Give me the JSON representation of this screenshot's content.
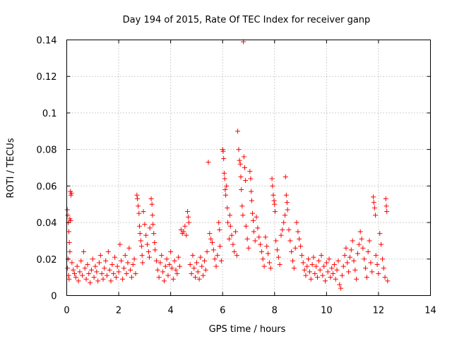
{
  "chart_data": {
    "type": "scatter",
    "title": "Day 194 of 2015, Rate Of TEC Index for receiver ganp",
    "xlabel": "GPS time / hours",
    "ylabel": "ROTI / TECUs",
    "xlim": [
      0,
      14
    ],
    "ylim": [
      0,
      0.14
    ],
    "xticks": [
      "0",
      "2",
      "4",
      "6",
      "8",
      "10",
      "12",
      "14"
    ],
    "yticks": [
      "0",
      "0.02",
      "0.04",
      "0.06",
      "0.08",
      "0.1",
      "0.12",
      "0.14"
    ],
    "grid": true,
    "marker": "+",
    "color": "#ff0000",
    "series": [
      {
        "name": "ROTI",
        "points": [
          [
            0.02,
            0.047
          ],
          [
            0.04,
            0.044
          ],
          [
            0.06,
            0.04
          ],
          [
            0.08,
            0.035
          ],
          [
            0.1,
            0.029
          ],
          [
            0.12,
            0.024
          ],
          [
            0.05,
            0.02
          ],
          [
            0.03,
            0.015
          ],
          [
            0.07,
            0.011
          ],
          [
            0.09,
            0.009
          ],
          [
            0.14,
            0.057
          ],
          [
            0.16,
            0.055
          ],
          [
            0.18,
            0.056
          ],
          [
            0.12,
            0.042
          ],
          [
            0.15,
            0.041
          ],
          [
            0.2,
            0.018
          ],
          [
            0.25,
            0.014
          ],
          [
            0.3,
            0.012
          ],
          [
            0.35,
            0.01
          ],
          [
            0.4,
            0.016
          ],
          [
            0.45,
            0.008
          ],
          [
            0.5,
            0.013
          ],
          [
            0.55,
            0.019
          ],
          [
            0.6,
            0.011
          ],
          [
            0.65,
            0.024
          ],
          [
            0.7,
            0.015
          ],
          [
            0.75,
            0.009
          ],
          [
            0.8,
            0.017
          ],
          [
            0.85,
            0.012
          ],
          [
            0.9,
            0.007
          ],
          [
            0.95,
            0.014
          ],
          [
            1.0,
            0.02
          ],
          [
            1.05,
            0.01
          ],
          [
            1.1,
            0.016
          ],
          [
            1.15,
            0.013
          ],
          [
            1.2,
            0.008
          ],
          [
            1.25,
            0.018
          ],
          [
            1.3,
            0.022
          ],
          [
            1.35,
            0.012
          ],
          [
            1.4,
            0.009
          ],
          [
            1.45,
            0.015
          ],
          [
            1.5,
            0.019
          ],
          [
            1.55,
            0.011
          ],
          [
            1.6,
            0.024
          ],
          [
            1.65,
            0.014
          ],
          [
            1.7,
            0.008
          ],
          [
            1.75,
            0.017
          ],
          [
            1.8,
            0.012
          ],
          [
            1.85,
            0.021
          ],
          [
            1.9,
            0.01
          ],
          [
            1.95,
            0.016
          ],
          [
            2.0,
            0.013
          ],
          [
            2.05,
            0.028
          ],
          [
            2.1,
            0.019
          ],
          [
            2.15,
            0.009
          ],
          [
            2.2,
            0.015
          ],
          [
            2.25,
            0.022
          ],
          [
            2.3,
            0.012
          ],
          [
            2.35,
            0.018
          ],
          [
            2.4,
            0.026
          ],
          [
            2.45,
            0.014
          ],
          [
            2.5,
            0.01
          ],
          [
            2.55,
            0.017
          ],
          [
            2.6,
            0.02
          ],
          [
            2.65,
            0.012
          ],
          [
            2.7,
            0.055
          ],
          [
            2.72,
            0.053
          ],
          [
            2.75,
            0.049
          ],
          [
            2.78,
            0.045
          ],
          [
            2.8,
            0.038
          ],
          [
            2.82,
            0.034
          ],
          [
            2.85,
            0.03
          ],
          [
            2.88,
            0.027
          ],
          [
            2.9,
            0.022
          ],
          [
            2.92,
            0.018
          ],
          [
            2.95,
            0.046
          ],
          [
            3.0,
            0.039
          ],
          [
            3.05,
            0.033
          ],
          [
            3.1,
            0.028
          ],
          [
            3.15,
            0.024
          ],
          [
            3.18,
            0.021
          ],
          [
            3.2,
            0.037
          ],
          [
            3.25,
            0.053
          ],
          [
            3.28,
            0.05
          ],
          [
            3.3,
            0.044
          ],
          [
            3.32,
            0.039
          ],
          [
            3.35,
            0.034
          ],
          [
            3.38,
            0.029
          ],
          [
            3.4,
            0.025
          ],
          [
            3.45,
            0.019
          ],
          [
            3.5,
            0.014
          ],
          [
            3.55,
            0.01
          ],
          [
            3.6,
            0.018
          ],
          [
            3.65,
            0.022
          ],
          [
            3.7,
            0.013
          ],
          [
            3.75,
            0.008
          ],
          [
            3.8,
            0.016
          ],
          [
            3.85,
            0.02
          ],
          [
            3.9,
            0.011
          ],
          [
            3.95,
            0.017
          ],
          [
            4.0,
            0.024
          ],
          [
            4.05,
            0.015
          ],
          [
            4.1,
            0.009
          ],
          [
            4.15,
            0.019
          ],
          [
            4.2,
            0.014
          ],
          [
            4.25,
            0.012
          ],
          [
            4.3,
            0.021
          ],
          [
            4.35,
            0.016
          ],
          [
            4.4,
            0.036
          ],
          [
            4.45,
            0.034
          ],
          [
            4.5,
            0.035
          ],
          [
            4.55,
            0.038
          ],
          [
            4.6,
            0.033
          ],
          [
            4.65,
            0.046
          ],
          [
            4.68,
            0.043
          ],
          [
            4.7,
            0.04
          ],
          [
            4.75,
            0.017
          ],
          [
            4.8,
            0.012
          ],
          [
            4.85,
            0.022
          ],
          [
            4.9,
            0.015
          ],
          [
            4.95,
            0.01
          ],
          [
            5.0,
            0.018
          ],
          [
            5.05,
            0.013
          ],
          [
            5.1,
            0.009
          ],
          [
            5.15,
            0.021
          ],
          [
            5.2,
            0.016
          ],
          [
            5.25,
            0.011
          ],
          [
            5.3,
            0.019
          ],
          [
            5.35,
            0.014
          ],
          [
            5.4,
            0.024
          ],
          [
            5.45,
            0.073
          ],
          [
            5.5,
            0.034
          ],
          [
            5.55,
            0.031
          ],
          [
            5.6,
            0.029
          ],
          [
            5.65,
            0.025
          ],
          [
            5.7,
            0.02
          ],
          [
            5.75,
            0.016
          ],
          [
            5.8,
            0.022
          ],
          [
            5.85,
            0.04
          ],
          [
            5.88,
            0.036
          ],
          [
            5.9,
            0.027
          ],
          [
            5.95,
            0.019
          ],
          [
            6.0,
            0.08
          ],
          [
            6.02,
            0.079
          ],
          [
            6.04,
            0.075
          ],
          [
            6.06,
            0.067
          ],
          [
            6.08,
            0.064
          ],
          [
            6.1,
            0.058
          ],
          [
            6.12,
            0.055
          ],
          [
            6.15,
            0.06
          ],
          [
            6.18,
            0.048
          ],
          [
            6.2,
            0.04
          ],
          [
            6.25,
            0.031
          ],
          [
            6.28,
            0.044
          ],
          [
            6.3,
            0.038
          ],
          [
            6.35,
            0.033
          ],
          [
            6.4,
            0.028
          ],
          [
            6.45,
            0.024
          ],
          [
            6.5,
            0.035
          ],
          [
            6.55,
            0.022
          ],
          [
            6.58,
            0.09
          ],
          [
            6.62,
            0.08
          ],
          [
            6.65,
            0.074
          ],
          [
            6.68,
            0.072
          ],
          [
            6.7,
            0.065
          ],
          [
            6.72,
            0.058
          ],
          [
            6.75,
            0.049
          ],
          [
            6.78,
            0.044
          ],
          [
            6.8,
            0.139
          ],
          [
            6.82,
            0.076
          ],
          [
            6.85,
            0.07
          ],
          [
            6.88,
            0.063
          ],
          [
            6.9,
            0.038
          ],
          [
            6.95,
            0.031
          ],
          [
            7.0,
            0.026
          ],
          [
            7.05,
            0.068
          ],
          [
            7.08,
            0.064
          ],
          [
            7.1,
            0.057
          ],
          [
            7.12,
            0.052
          ],
          [
            7.15,
            0.045
          ],
          [
            7.18,
            0.041
          ],
          [
            7.2,
            0.035
          ],
          [
            7.25,
            0.03
          ],
          [
            7.3,
            0.043
          ],
          [
            7.35,
            0.037
          ],
          [
            7.4,
            0.032
          ],
          [
            7.45,
            0.028
          ],
          [
            7.5,
            0.024
          ],
          [
            7.55,
            0.02
          ],
          [
            7.6,
            0.016
          ],
          [
            7.65,
            0.032
          ],
          [
            7.7,
            0.027
          ],
          [
            7.75,
            0.023
          ],
          [
            7.8,
            0.018
          ],
          [
            7.85,
            0.015
          ],
          [
            7.9,
            0.064
          ],
          [
            7.92,
            0.06
          ],
          [
            7.95,
            0.055
          ],
          [
            7.98,
            0.052
          ],
          [
            8.0,
            0.05
          ],
          [
            8.02,
            0.046
          ],
          [
            8.05,
            0.03
          ],
          [
            8.1,
            0.025
          ],
          [
            8.15,
            0.021
          ],
          [
            8.2,
            0.017
          ],
          [
            8.25,
            0.033
          ],
          [
            8.3,
            0.036
          ],
          [
            8.35,
            0.04
          ],
          [
            8.4,
            0.044
          ],
          [
            8.42,
            0.065
          ],
          [
            8.45,
            0.055
          ],
          [
            8.48,
            0.051
          ],
          [
            8.5,
            0.047
          ],
          [
            8.55,
            0.036
          ],
          [
            8.6,
            0.03
          ],
          [
            8.65,
            0.024
          ],
          [
            8.7,
            0.019
          ],
          [
            8.75,
            0.015
          ],
          [
            8.8,
            0.026
          ],
          [
            8.85,
            0.04
          ],
          [
            8.9,
            0.035
          ],
          [
            8.95,
            0.031
          ],
          [
            9.0,
            0.027
          ],
          [
            9.05,
            0.022
          ],
          [
            9.1,
            0.018
          ],
          [
            9.15,
            0.014
          ],
          [
            9.2,
            0.011
          ],
          [
            9.25,
            0.016
          ],
          [
            9.3,
            0.02
          ],
          [
            9.35,
            0.013
          ],
          [
            9.4,
            0.009
          ],
          [
            9.45,
            0.017
          ],
          [
            9.5,
            0.021
          ],
          [
            9.55,
            0.012
          ],
          [
            9.6,
            0.016
          ],
          [
            9.65,
            0.01
          ],
          [
            9.7,
            0.019
          ],
          [
            9.75,
            0.014
          ],
          [
            9.8,
            0.022
          ],
          [
            9.85,
            0.011
          ],
          [
            9.9,
            0.016
          ],
          [
            9.95,
            0.008
          ],
          [
            10.0,
            0.018
          ],
          [
            10.05,
            0.013
          ],
          [
            10.1,
            0.02
          ],
          [
            10.15,
            0.01
          ],
          [
            10.2,
            0.015
          ],
          [
            10.25,
            0.012
          ],
          [
            10.3,
            0.017
          ],
          [
            10.35,
            0.009
          ],
          [
            10.4,
            0.014
          ],
          [
            10.45,
            0.019
          ],
          [
            10.5,
            0.006
          ],
          [
            10.55,
            0.004
          ],
          [
            10.6,
            0.011
          ],
          [
            10.65,
            0.016
          ],
          [
            10.7,
            0.022
          ],
          [
            10.75,
            0.026
          ],
          [
            10.8,
            0.018
          ],
          [
            10.85,
            0.013
          ],
          [
            10.9,
            0.021
          ],
          [
            10.95,
            0.025
          ],
          [
            11.0,
            0.03
          ],
          [
            11.05,
            0.019
          ],
          [
            11.1,
            0.014
          ],
          [
            11.15,
            0.009
          ],
          [
            11.2,
            0.023
          ],
          [
            11.25,
            0.028
          ],
          [
            11.3,
            0.035
          ],
          [
            11.35,
            0.031
          ],
          [
            11.4,
            0.026
          ],
          [
            11.45,
            0.02
          ],
          [
            11.5,
            0.015
          ],
          [
            11.55,
            0.01
          ],
          [
            11.6,
            0.024
          ],
          [
            11.65,
            0.03
          ],
          [
            11.7,
            0.018
          ],
          [
            11.75,
            0.013
          ],
          [
            11.8,
            0.054
          ],
          [
            11.82,
            0.051
          ],
          [
            11.85,
            0.048
          ],
          [
            11.88,
            0.044
          ],
          [
            11.9,
            0.022
          ],
          [
            11.95,
            0.017
          ],
          [
            12.0,
            0.012
          ],
          [
            12.05,
            0.034
          ],
          [
            12.1,
            0.028
          ],
          [
            12.15,
            0.02
          ],
          [
            12.2,
            0.015
          ],
          [
            12.25,
            0.01
          ],
          [
            12.28,
            0.053
          ],
          [
            12.3,
            0.049
          ],
          [
            12.32,
            0.046
          ],
          [
            12.35,
            0.008
          ]
        ]
      }
    ]
  }
}
